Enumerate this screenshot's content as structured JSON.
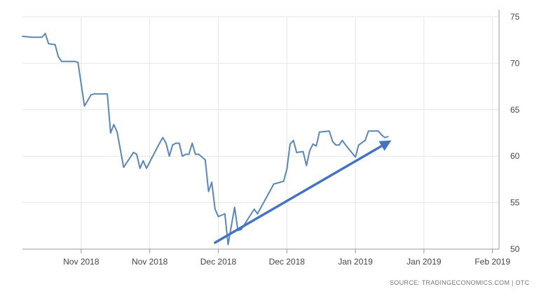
{
  "chart_data": {
    "type": "line",
    "title": "",
    "xlabel": "",
    "ylabel": "",
    "ylim": [
      50,
      75
    ],
    "y_ticks": [
      50,
      55,
      60,
      65,
      70,
      75
    ],
    "y_axis_side": "right",
    "grid": true,
    "x_ticks": [
      {
        "label": "Nov 2018",
        "x": "2018-10-28"
      },
      {
        "label": "Nov 2018",
        "x": "2018-11-18"
      },
      {
        "label": "Dec 2018",
        "x": "2018-12-09"
      },
      {
        "label": "Dec 2018",
        "x": "2018-12-30"
      },
      {
        "label": "Jan 2019",
        "x": "2019-01-20"
      },
      {
        "label": "Jan 2019",
        "x": "2019-02-10"
      },
      {
        "label": "Feb 2019",
        "x": "2019-03-03"
      }
    ],
    "xlim": [
      "2018-10-10",
      "2019-03-05"
    ],
    "series": [
      {
        "color": "#5b87b3",
        "points": [
          [
            "2018-10-10",
            72.9
          ],
          [
            "2018-10-13",
            72.8
          ],
          [
            "2018-10-16",
            72.8
          ],
          [
            "2018-10-17",
            73.2
          ],
          [
            "2018-10-18",
            72.1
          ],
          [
            "2018-10-20",
            72.0
          ],
          [
            "2018-10-21",
            70.7
          ],
          [
            "2018-10-22",
            70.2
          ],
          [
            "2018-10-26",
            70.2
          ],
          [
            "2018-10-27",
            70.1
          ],
          [
            "2018-10-29",
            65.4
          ],
          [
            "2018-10-31",
            66.6
          ],
          [
            "2018-11-01",
            66.7
          ],
          [
            "2018-11-05",
            66.7
          ],
          [
            "2018-11-06",
            62.5
          ],
          [
            "2018-11-07",
            63.4
          ],
          [
            "2018-11-08",
            62.6
          ],
          [
            "2018-11-10",
            58.8
          ],
          [
            "2018-11-13",
            60.4
          ],
          [
            "2018-11-14",
            60.2
          ],
          [
            "2018-11-15",
            58.7
          ],
          [
            "2018-11-16",
            59.5
          ],
          [
            "2018-11-17",
            58.7
          ],
          [
            "2018-11-21",
            61.4
          ],
          [
            "2018-11-22",
            62.0
          ],
          [
            "2018-11-23",
            61.4
          ],
          [
            "2018-11-24",
            60.0
          ],
          [
            "2018-11-25",
            61.2
          ],
          [
            "2018-11-26",
            61.4
          ],
          [
            "2018-11-27",
            61.4
          ],
          [
            "2018-11-28",
            60.0
          ],
          [
            "2018-11-29",
            60.2
          ],
          [
            "2018-11-30",
            60.2
          ],
          [
            "2018-12-01",
            61.4
          ],
          [
            "2018-12-02",
            60.2
          ],
          [
            "2018-12-03",
            60.2
          ],
          [
            "2018-12-05",
            59.6
          ],
          [
            "2018-12-06",
            56.2
          ],
          [
            "2018-12-07",
            57.2
          ],
          [
            "2018-12-08",
            54.3
          ],
          [
            "2018-12-09",
            53.5
          ],
          [
            "2018-12-11",
            53.8
          ],
          [
            "2018-12-12",
            50.5
          ],
          [
            "2018-12-14",
            54.5
          ],
          [
            "2018-12-15",
            52.0
          ],
          [
            "2018-12-16",
            52.1
          ],
          [
            "2018-12-20",
            54.3
          ],
          [
            "2018-12-21",
            53.8
          ],
          [
            "2018-12-26",
            57.0
          ],
          [
            "2018-12-29",
            57.3
          ],
          [
            "2018-12-30",
            58.6
          ],
          [
            "2018-12-31",
            61.3
          ],
          [
            "2019-01-01",
            61.7
          ],
          [
            "2019-01-02",
            60.4
          ],
          [
            "2019-01-04",
            60.5
          ],
          [
            "2019-01-05",
            59.0
          ],
          [
            "2019-01-06",
            60.6
          ],
          [
            "2019-01-07",
            61.3
          ],
          [
            "2019-01-08",
            61.1
          ],
          [
            "2019-01-09",
            62.6
          ],
          [
            "2019-01-12",
            62.7
          ],
          [
            "2019-01-13",
            61.6
          ],
          [
            "2019-01-14",
            61.2
          ],
          [
            "2019-01-15",
            61.2
          ],
          [
            "2019-01-16",
            61.7
          ],
          [
            "2019-01-17",
            61.2
          ],
          [
            "2019-01-20",
            59.9
          ],
          [
            "2019-01-21",
            61.2
          ],
          [
            "2019-01-23",
            61.7
          ],
          [
            "2019-01-24",
            62.7
          ],
          [
            "2019-01-27",
            62.7
          ],
          [
            "2019-01-28",
            62.3
          ],
          [
            "2019-01-29",
            62.0
          ],
          [
            "2019-01-30",
            62.1
          ]
        ]
      }
    ],
    "annotations": [
      {
        "type": "trend-arrow",
        "from": [
          "2018-12-08",
          50.7
        ],
        "to": [
          "2019-01-31",
          61.7
        ],
        "color": "#4472c4"
      }
    ]
  },
  "footer": {
    "source_note": "SOURCE: TRADINGECONOMICS.COM  |  OTC"
  }
}
